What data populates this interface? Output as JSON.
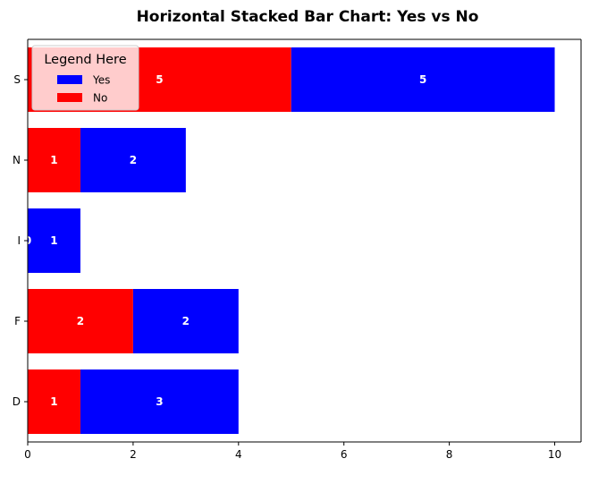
{
  "chart_data": {
    "type": "bar",
    "orientation": "horizontal",
    "stacked": true,
    "title": "Horizontal Stacked Bar Chart: Yes vs No",
    "xlabel": "",
    "ylabel": "",
    "categories": [
      "D",
      "F",
      "I",
      "N",
      "S"
    ],
    "series": [
      {
        "name": "No",
        "values": [
          1,
          2,
          0,
          1,
          5
        ],
        "color": "#ff0000"
      },
      {
        "name": "Yes",
        "values": [
          3,
          2,
          1,
          2,
          5
        ],
        "color": "#0000ff"
      }
    ],
    "xlim": [
      0,
      10.5
    ],
    "xticks": [
      0,
      2,
      4,
      6,
      8,
      10
    ],
    "grid": false,
    "legend": {
      "title": "Legend Here",
      "placement": "top-left",
      "entries": [
        {
          "label": "Yes",
          "color": "#0000ff"
        },
        {
          "label": "No",
          "color": "#ff0000"
        }
      ]
    }
  }
}
